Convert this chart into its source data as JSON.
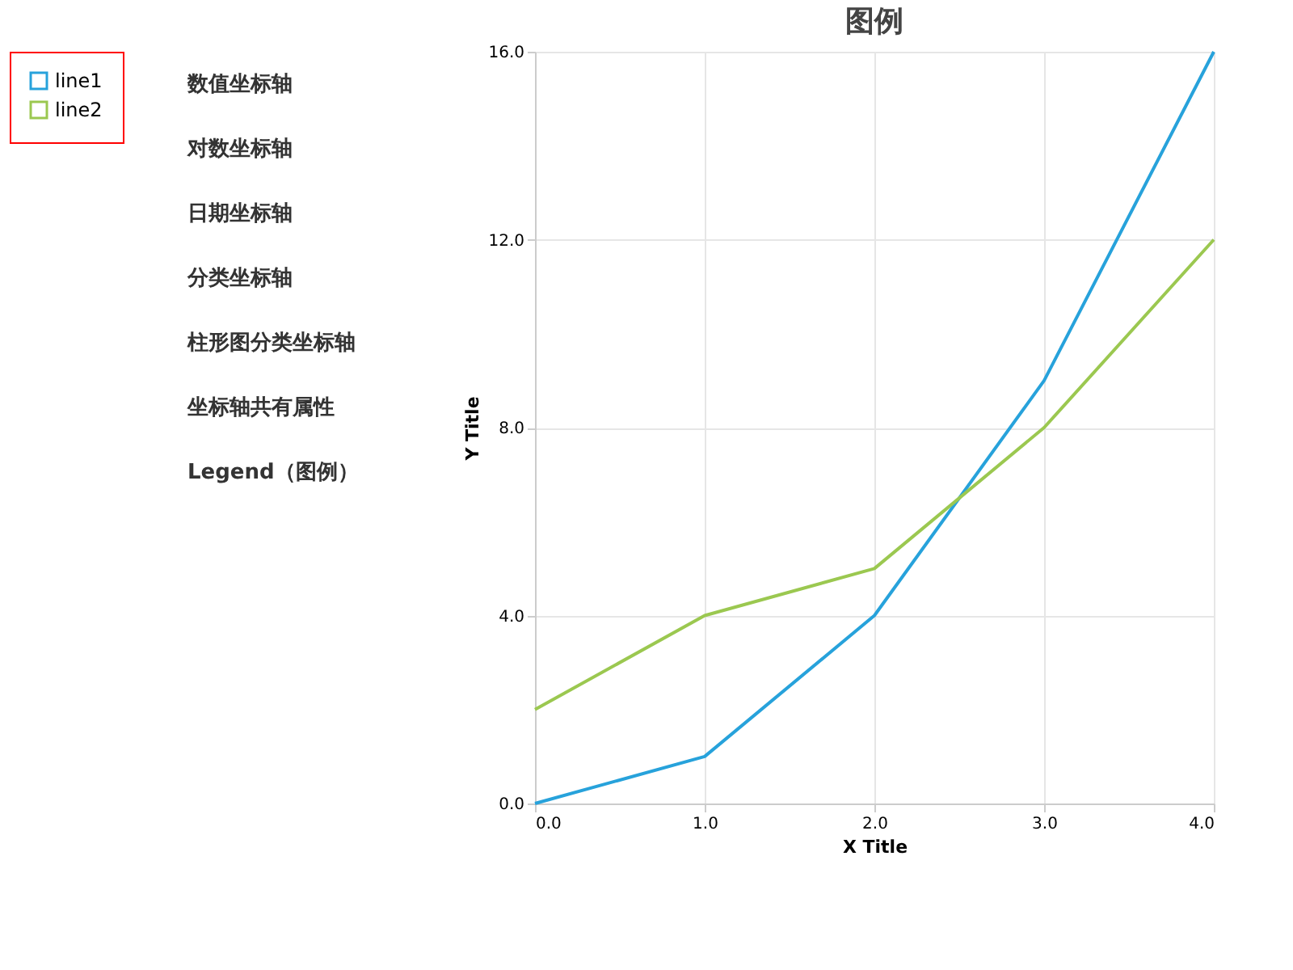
{
  "chart_data": {
    "type": "line",
    "title": "图例",
    "xlabel": "X Title",
    "ylabel": "Y Title",
    "annotations": [
      "数值坐标轴",
      "对数坐标轴",
      "日期坐标轴",
      "分类坐标轴",
      "柱形图分类坐标轴",
      "坐标轴共有属性",
      "Legend（图例）"
    ],
    "x": [
      0,
      1,
      2,
      3,
      4
    ],
    "series": [
      {
        "name": "line1",
        "color": "#27a2db",
        "values": [
          0,
          1,
          4,
          9,
          16
        ]
      },
      {
        "name": "line2",
        "color": "#9bc850",
        "values": [
          2,
          4,
          5,
          8,
          12
        ]
      }
    ],
    "xlim": [
      0,
      4
    ],
    "xticks": [
      {
        "value": 0,
        "label": "0.0"
      },
      {
        "value": 1,
        "label": "1.0"
      },
      {
        "value": 2,
        "label": "2.0"
      },
      {
        "value": 3,
        "label": "3.0"
      },
      {
        "value": 4,
        "label": "4.0"
      }
    ],
    "ylim": [
      0,
      16
    ],
    "yticks": [
      {
        "value": 0,
        "label": "0.0"
      },
      {
        "value": 4,
        "label": "4.0"
      },
      {
        "value": 8,
        "label": "8.0"
      },
      {
        "value": 12,
        "label": "12.0"
      },
      {
        "value": 16,
        "label": "16.0"
      }
    ],
    "grid": true,
    "legend": "left",
    "marker": "none",
    "line_style": "solid"
  }
}
